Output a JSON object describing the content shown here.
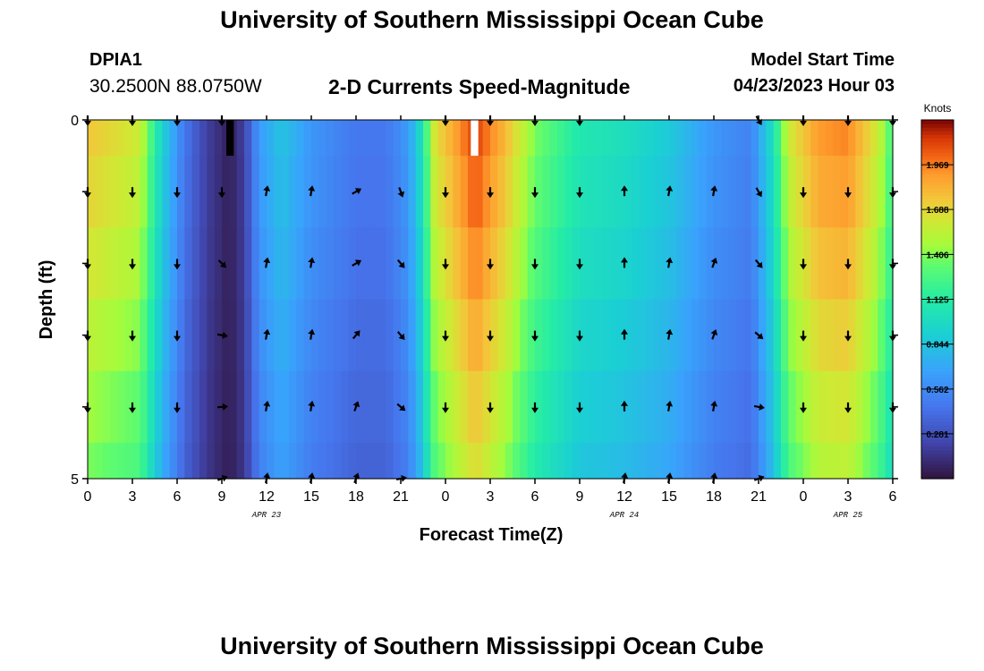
{
  "header": {
    "title": "University of Southern Mississippi Ocean Cube",
    "station_id": "DPIA1",
    "station_coords": "30.2500N  88.0750W",
    "product_title": "2-D Currents Speed-Magnitude",
    "model_label": "Model Start Time",
    "model_time": "04/23/2023 Hour 03"
  },
  "footer": {
    "title": "University of Southern Mississippi Ocean Cube"
  },
  "chart_data": {
    "type": "heatmap",
    "title": "2-D Currents Speed-Magnitude",
    "xlabel": "Forecast Time(Z)",
    "ylabel": "Depth (ft)",
    "x_ticks": [
      "0",
      "3",
      "6",
      "9",
      "12",
      "15",
      "18",
      "21",
      "0",
      "3",
      "6",
      "9",
      "12",
      "15",
      "18",
      "21",
      "0",
      "3",
      "6"
    ],
    "x_range_hours": [
      0,
      54
    ],
    "date_labels": [
      {
        "text": "APR 23",
        "hour": 12
      },
      {
        "text": "APR 24",
        "hour": 36
      },
      {
        "text": "APR 25",
        "hour": 51
      }
    ],
    "y_range": [
      0,
      5
    ],
    "y_labels": [
      "0",
      "5"
    ],
    "y_ticks": [
      0,
      1,
      2,
      3,
      4,
      5
    ],
    "colorbar": {
      "title": "Knots",
      "ticks": [
        0.281,
        0.562,
        0.844,
        1.125,
        1.406,
        1.688,
        1.969
      ],
      "range": [
        0,
        2.25
      ]
    },
    "speed_profile_knots": [
      {
        "hour": 0,
        "speed": 1.7
      },
      {
        "hour": 3.5,
        "speed": 1.55
      },
      {
        "hour": 5,
        "speed": 0.9
      },
      {
        "hour": 6.5,
        "speed": 0.45
      },
      {
        "hour": 8,
        "speed": 0.2
      },
      {
        "hour": 9.5,
        "speed": 0.06
      },
      {
        "hour": 10.5,
        "speed": 0.2
      },
      {
        "hour": 11.5,
        "speed": 0.62
      },
      {
        "hour": 13,
        "speed": 0.82
      },
      {
        "hour": 15,
        "speed": 0.6
      },
      {
        "hour": 18,
        "speed": 0.45
      },
      {
        "hour": 20,
        "speed": 0.45
      },
      {
        "hour": 21.5,
        "speed": 0.62
      },
      {
        "hour": 22.3,
        "speed": 0.95
      },
      {
        "hour": 23.3,
        "speed": 1.6
      },
      {
        "hour": 26,
        "speed": 2.05
      },
      {
        "hour": 28,
        "speed": 1.75
      },
      {
        "hour": 30,
        "speed": 1.35
      },
      {
        "hour": 33,
        "speed": 1.05
      },
      {
        "hour": 36,
        "speed": 0.98
      },
      {
        "hour": 39,
        "speed": 0.85
      },
      {
        "hour": 42,
        "speed": 0.6
      },
      {
        "hour": 44.5,
        "speed": 0.5
      },
      {
        "hour": 46,
        "speed": 1.0
      },
      {
        "hour": 47,
        "speed": 1.55
      },
      {
        "hour": 49,
        "speed": 1.85
      },
      {
        "hour": 51,
        "speed": 1.9
      },
      {
        "hour": 53,
        "speed": 1.55
      },
      {
        "hour": 54,
        "speed": 1.2
      }
    ],
    "missing_columns": [
      {
        "hour_start": 9.3,
        "hour_end": 9.8,
        "depth_start": 0,
        "depth_end": 0.5,
        "color": "#000000"
      },
      {
        "hour_start": 25.7,
        "hour_end": 26.2,
        "depth_start": 0,
        "depth_end": 0.5,
        "color": "#ffffff"
      }
    ],
    "arrow_hours": [
      0,
      3,
      6,
      9,
      12,
      15,
      18,
      21,
      24,
      27,
      30,
      33,
      36,
      39,
      42,
      45,
      48,
      51,
      54
    ],
    "arrow_depths": [
      0,
      1,
      2,
      3,
      4,
      5
    ],
    "arrow_directions_deg": [
      [
        180,
        180,
        180,
        180,
        null,
        null,
        null,
        null,
        180,
        180,
        180,
        180,
        null,
        null,
        null,
        150,
        180,
        180,
        180
      ],
      [
        180,
        180,
        180,
        180,
        10,
        10,
        60,
        160,
        180,
        180,
        180,
        180,
        0,
        10,
        10,
        150,
        180,
        180,
        180
      ],
      [
        180,
        180,
        180,
        135,
        10,
        10,
        60,
        140,
        180,
        180,
        180,
        180,
        0,
        10,
        20,
        140,
        180,
        180,
        180
      ],
      [
        180,
        180,
        180,
        100,
        10,
        10,
        40,
        140,
        180,
        180,
        180,
        180,
        0,
        10,
        20,
        130,
        180,
        180,
        180
      ],
      [
        180,
        180,
        180,
        85,
        10,
        10,
        20,
        130,
        180,
        180,
        180,
        180,
        0,
        10,
        10,
        100,
        180,
        180,
        180
      ],
      [
        null,
        null,
        null,
        70,
        10,
        10,
        20,
        80,
        null,
        null,
        null,
        null,
        10,
        10,
        10,
        70,
        null,
        null,
        null
      ]
    ]
  }
}
